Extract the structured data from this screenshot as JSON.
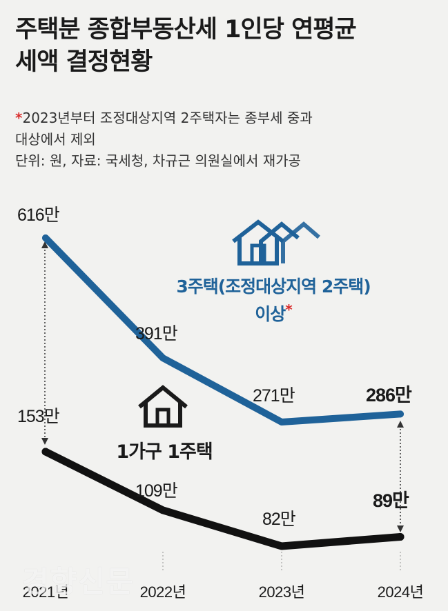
{
  "header": {
    "title_line1": "주택분 종합부동산세 1인당 연평균",
    "title_line2": "세액 결정현황"
  },
  "notes": {
    "asterisk": "*",
    "line1": "2023년부터 조정대상지역 2주택자는 종부세 중과",
    "line2": "대상에서 제외",
    "line3": "단위: 원, 자료: 국세청, 차규근 의원실에서 재가공"
  },
  "watermark": "경향신문",
  "chart_data": {
    "type": "line",
    "categories": [
      "2021년",
      "2022년",
      "2023년",
      "2024년"
    ],
    "unit": "원",
    "ylim": [
      0,
      650
    ],
    "grid": false,
    "series": [
      {
        "name_line1": "3주택(조정대상지역 2주택)",
        "name_line2": "이상",
        "name_asterisk": "*",
        "color": "#1f6299",
        "values": [
          616,
          391,
          271,
          286
        ],
        "labels": [
          "616만",
          "391만",
          "271만",
          "286만"
        ]
      },
      {
        "name": "1가구 1주택",
        "color": "#111111",
        "values": [
          153,
          109,
          82,
          89
        ],
        "labels": [
          "153만",
          "109만",
          "82만",
          "89만"
        ]
      }
    ]
  },
  "colors": {
    "background": "#f2f2f0",
    "multi_home": "#1f6299",
    "single_home": "#111111",
    "asterisk": "#d92b2b"
  },
  "icons": [
    "three-houses-icon",
    "house-icon"
  ]
}
